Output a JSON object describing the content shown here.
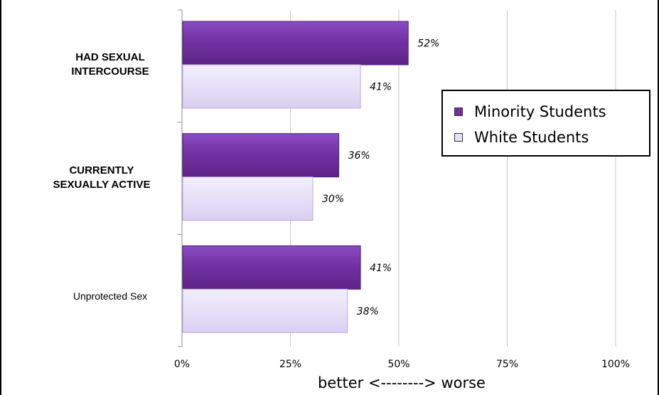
{
  "chart_data": {
    "type": "bar",
    "orientation": "horizontal",
    "categories": [
      "HAD SEXUAL INTERCOURSE",
      "CURRENTLY SEXUALLY ACTIVE",
      "Unprotected Sex"
    ],
    "category_lines": [
      [
        "HAD SEXUAL",
        "INTERCOURSE"
      ],
      [
        "CURRENTLY",
        "SEXUALLY ACTIVE"
      ],
      [
        "Unprotected Sex"
      ]
    ],
    "series": [
      {
        "name": "Minority Students",
        "values": [
          52,
          36,
          41
        ],
        "labels": [
          "52%",
          "36%",
          "41%"
        ],
        "color": "#7030a0"
      },
      {
        "name": "White Students",
        "values": [
          41,
          30,
          38
        ],
        "labels": [
          "41%",
          "30%",
          "38%"
        ],
        "color": "#e6e0f8"
      }
    ],
    "xlim": [
      0,
      100
    ],
    "xticks": [
      "0%",
      "25%",
      "50%",
      "75%",
      "100%"
    ],
    "xlabel": "better <--------> worse",
    "grid": true,
    "legend_position": "right"
  }
}
